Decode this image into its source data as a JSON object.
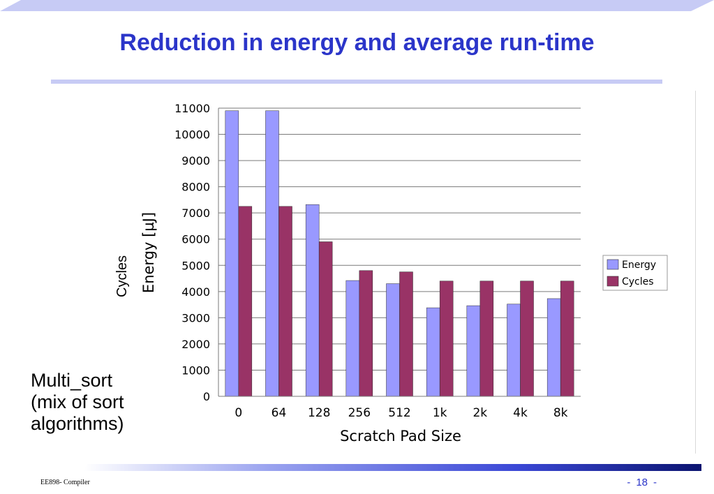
{
  "slide": {
    "title": "Reduction in energy and average run-time",
    "note_lines": [
      "Multi_sort",
      "(mix of sort",
      "algorithms)"
    ],
    "footer_left": "EE898- Compiler",
    "footer_dash_left": "-",
    "page_number": "18",
    "footer_dash_right": "-"
  },
  "colors": {
    "title": "#2b35c9",
    "energy": "#9999ff",
    "cycles": "#993366",
    "rule": "#c7cbf5"
  },
  "chart_data": {
    "type": "bar",
    "categories": [
      "0",
      "64",
      "128",
      "256",
      "512",
      "1k",
      "2k",
      "4k",
      "8k"
    ],
    "series": [
      {
        "name": "Energy",
        "values": [
          10900,
          10900,
          7320,
          4420,
          4300,
          3380,
          3460,
          3520,
          3730
        ]
      },
      {
        "name": "Cycles",
        "values": [
          7250,
          7250,
          5900,
          4800,
          4750,
          4400,
          4400,
          4400,
          4400
        ]
      }
    ],
    "xlabel": "Scratch Pad Size",
    "ylabel": "Energy [µJ]",
    "ylabel_secondary": "Cycles",
    "ylim": [
      0,
      11000
    ],
    "yticks": [
      0,
      1000,
      2000,
      3000,
      4000,
      5000,
      6000,
      7000,
      8000,
      9000,
      10000,
      11000
    ],
    "grid": true,
    "legend_position": "right"
  }
}
